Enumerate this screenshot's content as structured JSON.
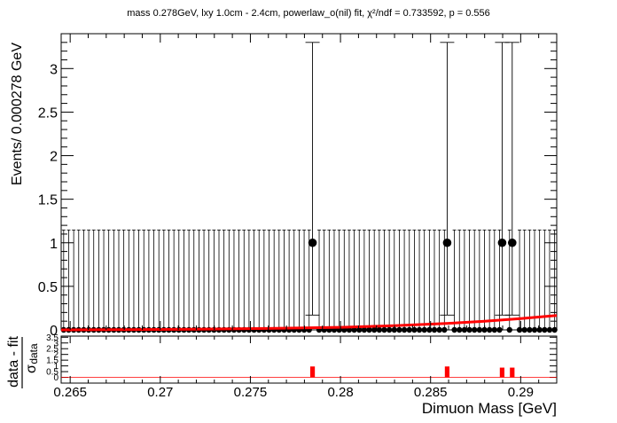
{
  "title": "mass 0.278GeV, lxy 1.0cm - 2.4cm, powerlaw_o(nil) fit, χ²/ndf = 0.733592, p = 0.556",
  "chart_data": [
    {
      "type": "scatter",
      "title": "mass 0.278GeV, lxy 1.0cm - 2.4cm, powerlaw_o(nil) fit, χ²/ndf = 0.733592, p = 0.556",
      "ylabel": "Events/ 0.000278 GeV",
      "xlabel": "Dimuon Mass [GeV]",
      "xlim": [
        0.2645,
        0.292
      ],
      "ylim": [
        0,
        3.4
      ],
      "xticks": [
        0.265,
        0.27,
        0.275,
        0.28,
        0.285,
        0.29
      ],
      "xtick_labels": [
        "0.265",
        "0.27",
        "0.275",
        "0.28",
        "0.285",
        "0.29"
      ],
      "yticks": [
        0,
        0.5,
        1,
        1.5,
        2,
        2.5,
        3
      ],
      "ytick_labels": [
        "0",
        "0.5",
        "1",
        "1.5",
        "2",
        "2.5",
        "3"
      ],
      "bin_width": 0.000278,
      "empty_bin_error_high": 1.147,
      "points": [
        {
          "x": 0.27845,
          "y": 1,
          "err_low": 0.83,
          "err_high": 2.3
        },
        {
          "x": 0.28592,
          "y": 1,
          "err_low": 0.83,
          "err_high": 2.3
        },
        {
          "x": 0.28897,
          "y": 1,
          "err_low": 0.83,
          "err_high": 2.3
        },
        {
          "x": 0.28953,
          "y": 1,
          "err_low": 0.83,
          "err_high": 2.3
        }
      ],
      "series": [
        {
          "name": "powerlaw_o(nil) fit",
          "color": "#ff0000",
          "x": [
            0.2645,
            0.268,
            0.272,
            0.276,
            0.28,
            0.283,
            0.286,
            0.288,
            0.29,
            0.292
          ],
          "y": [
            0.0,
            0.003,
            0.008,
            0.016,
            0.03,
            0.048,
            0.075,
            0.1,
            0.13,
            0.165
          ]
        }
      ],
      "grid": false,
      "marker_color": "#000000"
    },
    {
      "type": "bar",
      "ylabel": "data - fit / σ_data",
      "ylabel_numerator": "data - fit",
      "ylabel_denominator": "σ",
      "ylabel_denominator_sub": "data",
      "xlim": [
        0.2645,
        0.292
      ],
      "ylim": [
        -0.5,
        3.6
      ],
      "yticks": [
        0,
        0.5,
        1,
        1.5,
        2,
        2.5,
        3,
        3.5
      ],
      "ytick_labels": [
        "0",
        "0.5",
        "1",
        "1.5",
        "2",
        "2.5",
        "3",
        "3.5"
      ],
      "bar_color": "#ff0000",
      "x": [
        0.27845,
        0.28592,
        0.28897,
        0.28953
      ],
      "values": [
        0.95,
        0.95,
        0.85,
        0.85
      ]
    }
  ]
}
